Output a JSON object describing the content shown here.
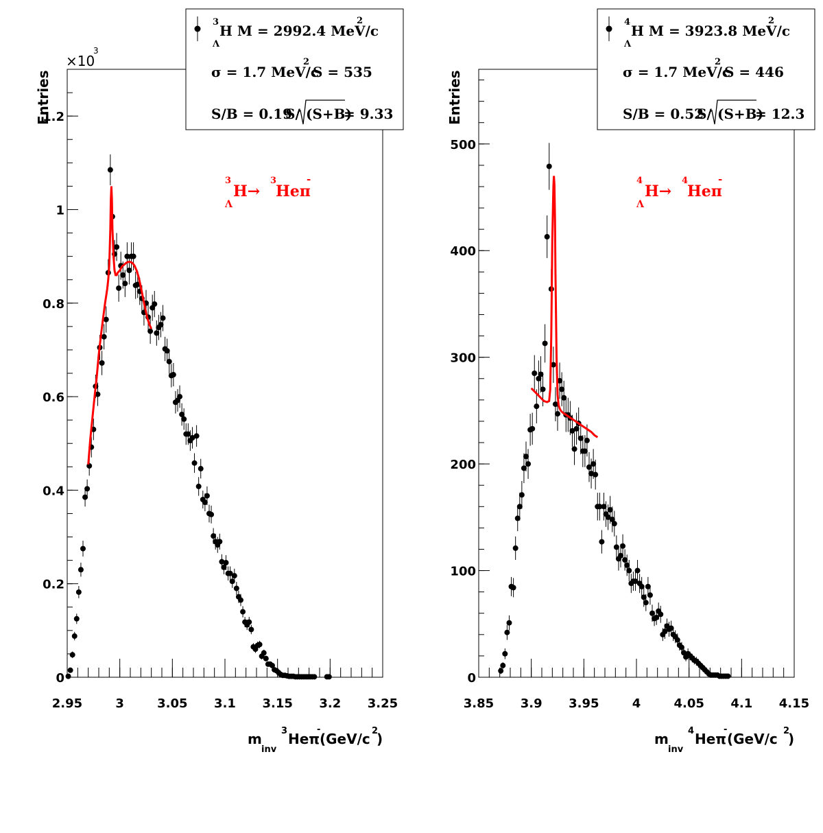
{
  "chart_data": [
    {
      "type": "scatter",
      "xlabel": {
        "main": "m",
        "sub": "inv",
        "nucleus": "3",
        "particle": "Heπ",
        "charge": "-",
        "unit_pre": "(GeV/c",
        "unit_exp": "2",
        "unit_post": ")"
      },
      "ylabel": "Entries",
      "y_multiplier": {
        "prefix": "×10",
        "exp": "3"
      },
      "xlim": [
        2.95,
        3.25
      ],
      "ylim": [
        0,
        1.3
      ],
      "xticks": [
        2.95,
        3.0,
        3.05,
        3.1,
        3.15,
        3.2,
        3.25
      ],
      "xtick_labels": [
        "2.95",
        "3",
        "3.05",
        "3.1",
        "3.15",
        "3.2",
        "3.25"
      ],
      "yticks": [
        0,
        0.2,
        0.4,
        0.6,
        0.8,
        1.0,
        1.2
      ],
      "ytick_labels": [
        "0",
        "0.2",
        "0.4",
        "0.6",
        "0.8",
        "1",
        "1.2"
      ],
      "stats": {
        "nucleus": "3",
        "hyper_sub": "Λ",
        "name_text": "H M = 2992.4 MeV/c",
        "name_exp": "2",
        "sigma_text": "σ = 1.7 MeV/c",
        "sigma_exp": "2",
        "signal_text": "S =  535",
        "sb_text": "S/B = 0.19",
        "sig_pre": "S/",
        "sig_arg": "(S+B)",
        "sig_post": " = 9.33"
      },
      "decay_label": {
        "n1": "3",
        "sub": "Λ",
        "h": "H→ ",
        "n2": "3",
        "d": "Heπ",
        "ch": "-"
      },
      "fit_color": "#ff0000",
      "marker_color": "#000000",
      "data": {
        "x": [
          2.951,
          2.953,
          2.955,
          2.957,
          2.959,
          2.961,
          2.963,
          2.965,
          2.967,
          2.969,
          2.971,
          2.973,
          2.975,
          2.977,
          2.979,
          2.981,
          2.983,
          2.985,
          2.987,
          2.989,
          2.991,
          2.993,
          2.995,
          2.997,
          2.999,
          3.001,
          3.003,
          3.005,
          3.007,
          3.009,
          3.011,
          3.013,
          3.015,
          3.017,
          3.019,
          3.021,
          3.023,
          3.025,
          3.027,
          3.029,
          3.031,
          3.033,
          3.035,
          3.037,
          3.039,
          3.041,
          3.043,
          3.045,
          3.047,
          3.049,
          3.051,
          3.053,
          3.055,
          3.057,
          3.059,
          3.061,
          3.063,
          3.065,
          3.067,
          3.069,
          3.071,
          3.073,
          3.075,
          3.077,
          3.079,
          3.081,
          3.083,
          3.085,
          3.087,
          3.089,
          3.091,
          3.093,
          3.095,
          3.097,
          3.099,
          3.101,
          3.103,
          3.105,
          3.107,
          3.109,
          3.111,
          3.113,
          3.115,
          3.117,
          3.119,
          3.121,
          3.123,
          3.125,
          3.127,
          3.129,
          3.131,
          3.133,
          3.135,
          3.137,
          3.139,
          3.141,
          3.143,
          3.145,
          3.147,
          3.149,
          3.151,
          3.153,
          3.155,
          3.157,
          3.159,
          3.161,
          3.163,
          3.165,
          3.167,
          3.169,
          3.171,
          3.173,
          3.175,
          3.177,
          3.179,
          3.181,
          3.183,
          3.185,
          3.197,
          3.199
        ],
        "y": [
          0.002,
          0.015,
          0.048,
          0.088,
          0.125,
          0.182,
          0.23,
          0.275,
          0.385,
          0.403,
          0.452,
          0.492,
          0.53,
          0.622,
          0.605,
          0.705,
          0.672,
          0.728,
          0.765,
          0.865,
          1.085,
          0.985,
          0.905,
          0.92,
          0.832,
          0.88,
          0.86,
          0.842,
          0.9,
          0.87,
          0.9,
          0.9,
          0.838,
          0.84,
          0.825,
          0.81,
          0.78,
          0.8,
          0.77,
          0.74,
          0.79,
          0.798,
          0.736,
          0.748,
          0.754,
          0.768,
          0.702,
          0.698,
          0.675,
          0.645,
          0.647,
          0.588,
          0.592,
          0.6,
          0.562,
          0.552,
          0.52,
          0.52,
          0.506,
          0.512,
          0.458,
          0.516,
          0.408,
          0.446,
          0.38,
          0.374,
          0.388,
          0.35,
          0.348,
          0.302,
          0.29,
          0.283,
          0.29,
          0.247,
          0.235,
          0.245,
          0.222,
          0.222,
          0.205,
          0.217,
          0.19,
          0.172,
          0.165,
          0.14,
          0.118,
          0.112,
          0.118,
          0.102,
          0.065,
          0.06,
          0.068,
          0.07,
          0.045,
          0.052,
          0.04,
          0.028,
          0.028,
          0.025,
          0.016,
          0.014,
          0.01,
          0.006,
          0.004,
          0.004,
          0.003,
          0.002,
          0.002,
          0.002,
          0.001,
          0.001,
          0.001,
          0.001,
          0.001,
          0.001,
          0.001,
          0.001,
          0.001,
          0.001,
          0.001,
          0.001
        ],
        "yerr": [
          0.002,
          0.004,
          0.007,
          0.009,
          0.011,
          0.013,
          0.015,
          0.017,
          0.02,
          0.02,
          0.021,
          0.022,
          0.023,
          0.025,
          0.025,
          0.027,
          0.026,
          0.027,
          0.028,
          0.029,
          0.033,
          0.031,
          0.03,
          0.03,
          0.029,
          0.03,
          0.029,
          0.029,
          0.03,
          0.03,
          0.03,
          0.03,
          0.029,
          0.029,
          0.029,
          0.028,
          0.028,
          0.028,
          0.028,
          0.027,
          0.028,
          0.028,
          0.027,
          0.027,
          0.027,
          0.028,
          0.026,
          0.026,
          0.026,
          0.025,
          0.025,
          0.024,
          0.024,
          0.024,
          0.024,
          0.023,
          0.023,
          0.023,
          0.022,
          0.023,
          0.021,
          0.023,
          0.02,
          0.021,
          0.019,
          0.019,
          0.02,
          0.019,
          0.019,
          0.017,
          0.017,
          0.017,
          0.017,
          0.016,
          0.015,
          0.016,
          0.015,
          0.015,
          0.014,
          0.015,
          0.014,
          0.013,
          0.013,
          0.012,
          0.011,
          0.011,
          0.011,
          0.01,
          0.008,
          0.008,
          0.008,
          0.008,
          0.007,
          0.007,
          0.006,
          0.005,
          0.005,
          0.005,
          0.004,
          0.004,
          0.003,
          0.002,
          0.002,
          0.002,
          0.002,
          0.001,
          0.001,
          0.001,
          0.001,
          0.001,
          0.001,
          0.001,
          0.001,
          0.001,
          0.001,
          0.001,
          0.001,
          0.001,
          0.001,
          0.001
        ]
      },
      "fit": {
        "x": [
          2.97,
          2.972,
          2.974,
          2.976,
          2.978,
          2.98,
          2.982,
          2.984,
          2.986,
          2.988,
          2.989,
          2.99,
          2.991,
          2.9915,
          2.992,
          2.9925,
          2.993,
          2.994,
          2.995,
          2.996,
          2.997,
          2.998,
          3.0,
          3.002,
          3.004,
          3.006,
          3.008,
          3.01,
          3.012,
          3.014,
          3.016,
          3.018,
          3.02,
          3.022,
          3.024,
          3.026,
          3.028,
          3.03
        ],
        "y": [
          0.455,
          0.51,
          0.555,
          0.6,
          0.64,
          0.69,
          0.73,
          0.765,
          0.8,
          0.83,
          0.85,
          0.88,
          0.96,
          1.02,
          1.05,
          1.02,
          0.96,
          0.9,
          0.87,
          0.86,
          0.86,
          0.865,
          0.87,
          0.878,
          0.882,
          0.886,
          0.888,
          0.888,
          0.886,
          0.88,
          0.87,
          0.855,
          0.835,
          0.812,
          0.79,
          0.77,
          0.755,
          0.745
        ]
      }
    },
    {
      "type": "scatter",
      "xlabel": {
        "main": "m",
        "sub": "inv",
        "nucleus": "4",
        "particle": "Heπ",
        "charge": "-",
        "unit_pre": " (GeV/c",
        "unit_exp": "2",
        "unit_post": ")"
      },
      "ylabel": "Entries",
      "xlim": [
        3.85,
        4.15
      ],
      "ylim": [
        0,
        570
      ],
      "xticks": [
        3.85,
        3.9,
        3.95,
        4.0,
        4.05,
        4.1,
        4.15
      ],
      "xtick_labels": [
        "3.85",
        "3.9",
        "3.95",
        "4",
        "4.05",
        "4.1",
        "4.15"
      ],
      "yticks": [
        0,
        100,
        200,
        300,
        400,
        500
      ],
      "ytick_labels": [
        "0",
        "100",
        "200",
        "300",
        "400",
        "500"
      ],
      "stats": {
        "nucleus": "4",
        "hyper_sub": "Λ",
        "name_text": "H M = 3923.8 MeV/c",
        "name_exp": "2",
        "sigma_text": "σ = 1.7 MeV/c",
        "sigma_exp": "2",
        "signal_text": "S =  446",
        "sb_text": "S/B = 0.52",
        "sig_pre": "S/",
        "sig_arg": "(S+B)",
        "sig_post": " = 12.3"
      },
      "decay_label": {
        "n1": "4",
        "sub": "Λ",
        "h": "H→ ",
        "n2": "4",
        "d": "Heπ",
        "ch": "-"
      },
      "fit_color": "#ff0000",
      "marker_color": "#000000",
      "data": {
        "x": [
          3.871,
          3.873,
          3.875,
          3.877,
          3.879,
          3.881,
          3.883,
          3.885,
          3.887,
          3.889,
          3.891,
          3.893,
          3.895,
          3.897,
          3.899,
          3.901,
          3.903,
          3.905,
          3.907,
          3.909,
          3.911,
          3.913,
          3.915,
          3.917,
          3.919,
          3.921,
          3.923,
          3.925,
          3.927,
          3.929,
          3.931,
          3.933,
          3.935,
          3.937,
          3.939,
          3.941,
          3.943,
          3.945,
          3.947,
          3.949,
          3.951,
          3.953,
          3.955,
          3.957,
          3.959,
          3.961,
          3.963,
          3.965,
          3.967,
          3.969,
          3.971,
          3.973,
          3.975,
          3.977,
          3.979,
          3.981,
          3.983,
          3.985,
          3.987,
          3.989,
          3.991,
          3.993,
          3.995,
          3.997,
          3.999,
          4.001,
          4.003,
          4.005,
          4.007,
          4.009,
          4.011,
          4.013,
          4.015,
          4.017,
          4.019,
          4.021,
          4.023,
          4.025,
          4.027,
          4.029,
          4.031,
          4.033,
          4.035,
          4.037,
          4.039,
          4.041,
          4.043,
          4.045,
          4.047,
          4.049,
          4.051,
          4.053,
          4.055,
          4.057,
          4.059,
          4.061,
          4.063,
          4.065,
          4.067,
          4.069,
          4.071,
          4.073,
          4.075,
          4.077,
          4.079,
          4.081,
          4.083,
          4.085,
          4.087
        ],
        "y": [
          6,
          11,
          22,
          42,
          51,
          85,
          84,
          121,
          149,
          160,
          171,
          196,
          207,
          200,
          232,
          233,
          285,
          254,
          280,
          284,
          270,
          313,
          413,
          479,
          364,
          293,
          256,
          247,
          278,
          270,
          262,
          246,
          246,
          243,
          231,
          214,
          233,
          238,
          224,
          212,
          212,
          222,
          197,
          191,
          200,
          190,
          160,
          160,
          127,
          160,
          153,
          150,
          157,
          148,
          144,
          122,
          111,
          114,
          123,
          110,
          105,
          100,
          88,
          90,
          90,
          100,
          88,
          85,
          75,
          70,
          85,
          77,
          60,
          55,
          56,
          62,
          59,
          40,
          43,
          48,
          45,
          46,
          40,
          38,
          35,
          30,
          28,
          23,
          19,
          22,
          20,
          18,
          16,
          15,
          13,
          11,
          9,
          7,
          5,
          3,
          2,
          2,
          2,
          2,
          1,
          1,
          1,
          1,
          1
        ],
        "yerr": [
          3,
          3,
          5,
          7,
          7,
          9,
          9,
          11,
          12,
          13,
          13,
          14,
          14,
          14,
          15,
          15,
          17,
          16,
          17,
          17,
          16,
          18,
          20,
          22,
          19,
          17,
          16,
          16,
          17,
          16,
          16,
          16,
          16,
          16,
          15,
          15,
          15,
          15,
          15,
          15,
          15,
          15,
          14,
          14,
          14,
          14,
          13,
          13,
          11,
          13,
          12,
          12,
          13,
          12,
          12,
          11,
          11,
          11,
          11,
          10,
          10,
          10,
          9,
          9,
          9,
          10,
          9,
          9,
          9,
          8,
          9,
          9,
          8,
          7,
          7,
          8,
          8,
          6,
          7,
          7,
          7,
          7,
          6,
          6,
          6,
          5,
          5,
          5,
          4,
          5,
          4,
          4,
          4,
          4,
          4,
          3,
          3,
          3,
          2,
          2,
          1,
          1,
          1,
          1,
          1,
          1,
          1,
          1,
          1
        ]
      },
      "fit": {
        "x": [
          3.9,
          3.903,
          3.906,
          3.909,
          3.912,
          3.915,
          3.917,
          3.918,
          3.919,
          3.92,
          3.921,
          3.9215,
          3.922,
          3.9225,
          3.923,
          3.924,
          3.925,
          3.926,
          3.927,
          3.928,
          3.93,
          3.933,
          3.936,
          3.939,
          3.942,
          3.945,
          3.948,
          3.951,
          3.954,
          3.957,
          3.96,
          3.963
        ],
        "y": [
          271,
          268,
          265,
          262,
          259,
          258,
          259,
          270,
          320,
          410,
          460,
          470,
          462,
          430,
          380,
          300,
          265,
          255,
          252,
          250,
          248,
          246,
          244,
          242,
          240,
          238,
          236,
          234,
          232,
          230,
          227,
          225
        ]
      }
    }
  ]
}
